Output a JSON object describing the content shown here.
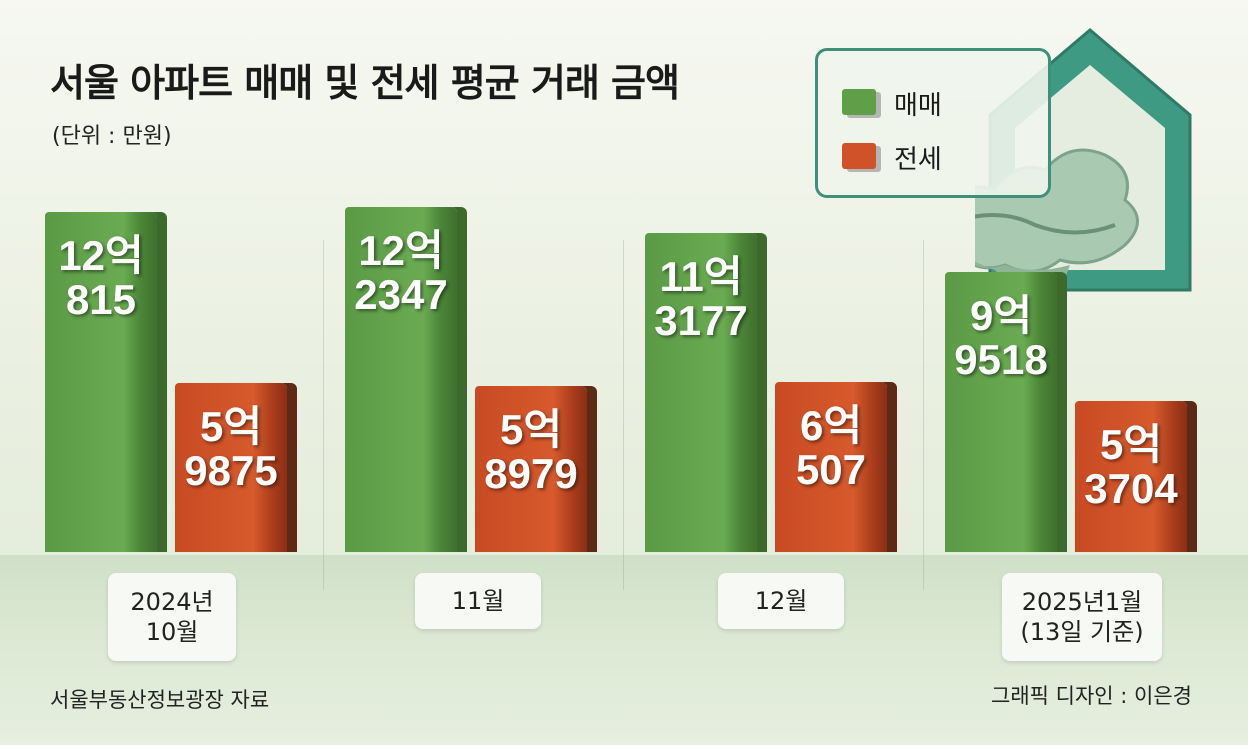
{
  "title": "서울 아파트 매매 및 전세 평균 거래 금액",
  "unit": "(단위 : 만원)",
  "source": "서울부동산정보광장 자료",
  "credit": "그래픽 디자인 : 이은경",
  "legend": [
    {
      "label": "매매",
      "color": "#5f9f48"
    },
    {
      "label": "전세",
      "color": "#cf5228"
    }
  ],
  "chart_data": {
    "type": "bar",
    "title": "서울 아파트 매매 및 전세 평균 거래 금액",
    "unit": "(단위 : 만원)",
    "categories": [
      {
        "line1": "2024년",
        "line2": "10월"
      },
      {
        "line1": "11월",
        "line2": ""
      },
      {
        "line1": "12월",
        "line2": ""
      },
      {
        "line1": "2025년1월",
        "line2": "(13일 기준)"
      }
    ],
    "series": [
      {
        "name": "매매",
        "color": "#5f9f48",
        "values": [
          120815,
          122347,
          113177,
          99518
        ],
        "labels": [
          [
            "12억",
            "815"
          ],
          [
            "12억",
            "2347"
          ],
          [
            "11억",
            "3177"
          ],
          [
            "9억",
            "9518"
          ]
        ]
      },
      {
        "name": "전세",
        "color": "#cf5228",
        "values": [
          59875,
          58979,
          60507,
          53704
        ],
        "labels": [
          [
            "5억",
            "9875"
          ],
          [
            "5억",
            "8979"
          ],
          [
            "6억",
            "507"
          ],
          [
            "5억",
            "3704"
          ]
        ]
      }
    ],
    "ylim": [
      0,
      125000
    ]
  }
}
